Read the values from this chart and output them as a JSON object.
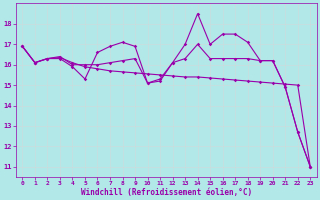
{
  "xlabel": "Windchill (Refroidissement éolien,°C)",
  "background_color": "#b2e8e8",
  "grid_color": "#c8dede",
  "line_color": "#9900aa",
  "spine_color": "#9900aa",
  "xlim": [
    -0.5,
    23.5
  ],
  "ylim": [
    10.5,
    19.0
  ],
  "yticks": [
    11,
    12,
    13,
    14,
    15,
    16,
    17,
    18
  ],
  "xticks": [
    0,
    1,
    2,
    3,
    4,
    5,
    6,
    7,
    8,
    9,
    10,
    11,
    12,
    13,
    14,
    15,
    16,
    17,
    18,
    19,
    20,
    21,
    22,
    23
  ],
  "series": [
    [
      16.9,
      16.1,
      16.3,
      16.3,
      15.9,
      15.3,
      16.6,
      16.9,
      17.1,
      16.9,
      15.1,
      15.2,
      16.1,
      17.0,
      18.5,
      17.0,
      17.5,
      17.5,
      17.1,
      16.2,
      16.2,
      14.9,
      12.7,
      11.0
    ],
    [
      16.9,
      16.1,
      16.3,
      16.35,
      16.1,
      15.9,
      15.8,
      15.7,
      15.65,
      15.6,
      15.55,
      15.5,
      15.45,
      15.4,
      15.4,
      15.35,
      15.3,
      15.25,
      15.2,
      15.15,
      15.1,
      15.05,
      15.0,
      11.0
    ],
    [
      16.9,
      16.1,
      16.3,
      16.4,
      16.0,
      16.0,
      16.0,
      16.1,
      16.2,
      16.3,
      15.1,
      15.3,
      16.1,
      16.3,
      17.0,
      16.3,
      16.3,
      16.3,
      16.3,
      16.2,
      16.2,
      14.9,
      12.7,
      11.0
    ]
  ]
}
